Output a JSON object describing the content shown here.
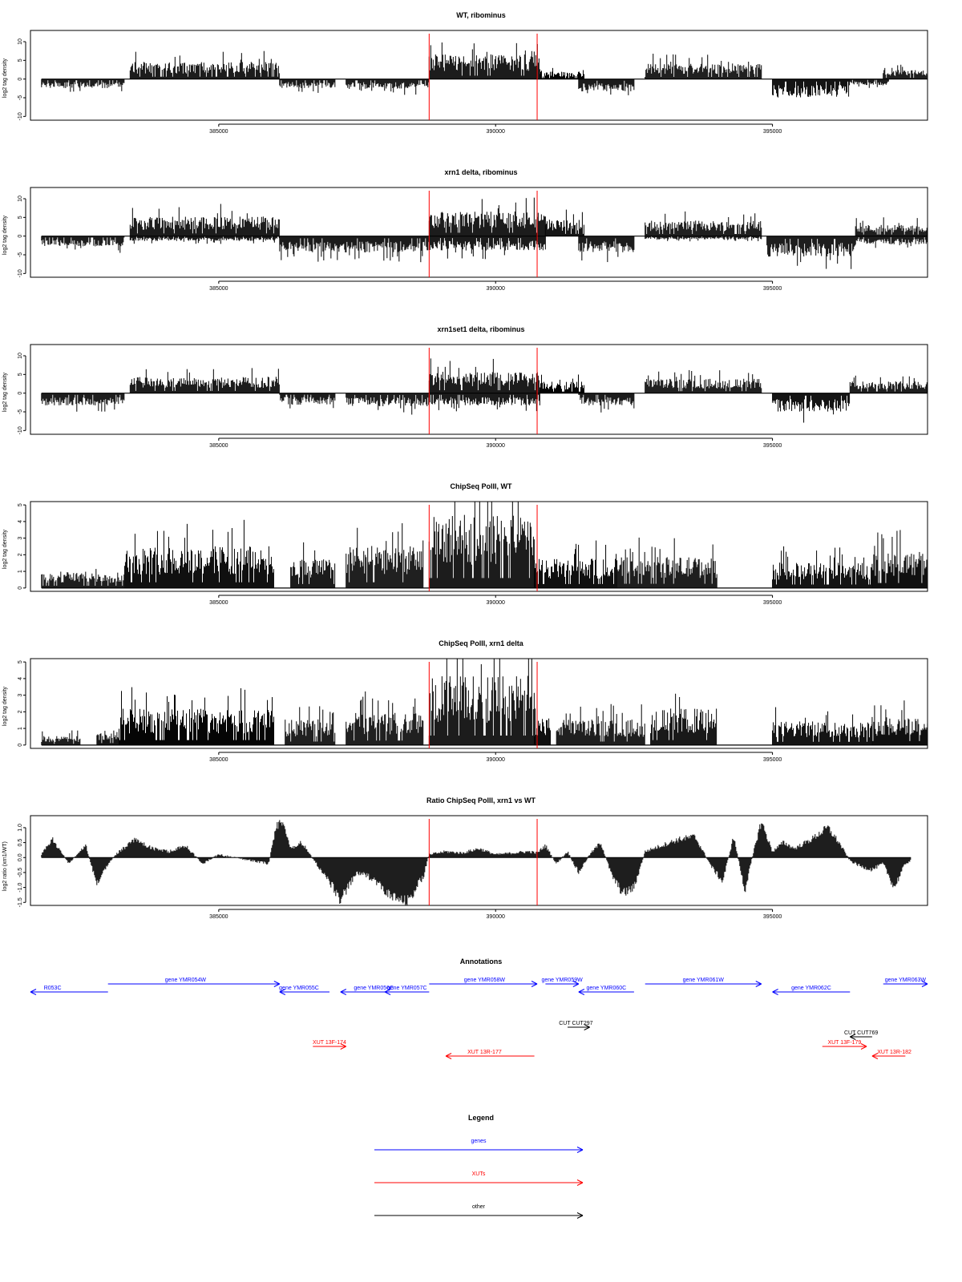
{
  "colors": {
    "bars": "#000000",
    "marker": "#ff0000",
    "gene": "#0000ff",
    "xut": "#ff0000",
    "other": "#000000",
    "frame": "#000000"
  },
  "chart_data": [
    {
      "type": "bar",
      "title": "WT, ribominus",
      "ylabel": "log2 tag density",
      "ylim": [
        -11,
        13
      ],
      "yticks": [
        "10",
        "5",
        "0",
        "-5",
        "-10"
      ],
      "xlim": [
        381600,
        397800
      ],
      "xticks": [
        "385000",
        "390000",
        "395000"
      ],
      "markers": [
        388800,
        390750
      ],
      "segments": [
        {
          "from": 381800,
          "to": 383300,
          "strand": "-",
          "level": 2.2
        },
        {
          "from": 383400,
          "to": 386100,
          "strand": "+",
          "level": 4.2
        },
        {
          "from": 386100,
          "to": 387100,
          "strand": "-",
          "level": 2.2
        },
        {
          "from": 387300,
          "to": 388800,
          "strand": "-",
          "level": 2.4
        },
        {
          "from": 388800,
          "to": 390800,
          "strand": "+",
          "level": 6.0
        },
        {
          "from": 390800,
          "to": 391600,
          "strand": "+",
          "level": 1.8
        },
        {
          "from": 391500,
          "to": 392500,
          "strand": "-",
          "level": 3.0
        },
        {
          "from": 392700,
          "to": 394800,
          "strand": "+",
          "level": 3.8
        },
        {
          "from": 395000,
          "to": 396400,
          "strand": "-",
          "level": 4.5
        },
        {
          "from": 396400,
          "to": 397100,
          "strand": "-",
          "level": 1.6
        },
        {
          "from": 397000,
          "to": 397800,
          "strand": "+",
          "level": 2.2
        }
      ]
    },
    {
      "type": "bar",
      "title": "xrn1 delta, ribominus",
      "ylabel": "log2 tag density",
      "ylim": [
        -11,
        13
      ],
      "yticks": [
        "10",
        "5",
        "0",
        "-5",
        "-10"
      ],
      "xlim": [
        381600,
        397800
      ],
      "xticks": [
        "385000",
        "390000",
        "395000"
      ],
      "markers": [
        388800,
        390750
      ],
      "segments": [
        {
          "from": 381800,
          "to": 383300,
          "strand": "-",
          "level": 2.5
        },
        {
          "from": 383400,
          "to": 386100,
          "strand": "+",
          "level": 4.8
        },
        {
          "from": 383400,
          "to": 386100,
          "strand": "-",
          "level": 1.2
        },
        {
          "from": 386100,
          "to": 388800,
          "strand": "-",
          "level": 4.0
        },
        {
          "from": 388800,
          "to": 390900,
          "strand": "+",
          "level": 6.0
        },
        {
          "from": 388800,
          "to": 390900,
          "strand": "-",
          "level": 3.5
        },
        {
          "from": 390900,
          "to": 391600,
          "strand": "+",
          "level": 4.0
        },
        {
          "from": 391500,
          "to": 392500,
          "strand": "-",
          "level": 4.0
        },
        {
          "from": 392700,
          "to": 394800,
          "strand": "+",
          "level": 3.8
        },
        {
          "from": 392700,
          "to": 394800,
          "strand": "-",
          "level": 0.8
        },
        {
          "from": 394900,
          "to": 396500,
          "strand": "-",
          "level": 5.0
        },
        {
          "from": 396500,
          "to": 397800,
          "strand": "+",
          "level": 2.8
        },
        {
          "from": 396500,
          "to": 397800,
          "strand": "-",
          "level": 2.0
        }
      ]
    },
    {
      "type": "bar",
      "title": "xrn1set1 delta, ribominus",
      "ylabel": "log2 tag density",
      "ylim": [
        -11,
        13
      ],
      "yticks": [
        "10",
        "5",
        "0",
        "-5",
        "-10"
      ],
      "xlim": [
        381600,
        397800
      ],
      "xticks": [
        "385000",
        "390000",
        "395000"
      ],
      "markers": [
        388800,
        390750
      ],
      "segments": [
        {
          "from": 381800,
          "to": 383300,
          "strand": "-",
          "level": 3.0
        },
        {
          "from": 383400,
          "to": 386100,
          "strand": "+",
          "level": 4.0
        },
        {
          "from": 386100,
          "to": 387100,
          "strand": "-",
          "level": 2.8
        },
        {
          "from": 387300,
          "to": 388800,
          "strand": "-",
          "level": 3.2
        },
        {
          "from": 388800,
          "to": 390800,
          "strand": "+",
          "level": 5.2
        },
        {
          "from": 388800,
          "to": 390800,
          "strand": "-",
          "level": 3.0
        },
        {
          "from": 390800,
          "to": 391600,
          "strand": "+",
          "level": 2.8
        },
        {
          "from": 391500,
          "to": 392500,
          "strand": "-",
          "level": 3.0
        },
        {
          "from": 392700,
          "to": 394800,
          "strand": "+",
          "level": 3.5
        },
        {
          "from": 395000,
          "to": 396400,
          "strand": "-",
          "level": 4.5
        },
        {
          "from": 396400,
          "to": 397800,
          "strand": "+",
          "level": 3.0
        }
      ]
    },
    {
      "type": "bar",
      "title": "ChipSeq PolII, WT",
      "ylabel": "log2 tag density",
      "ylim": [
        -0.2,
        5.2
      ],
      "yticks": [
        "5",
        "4",
        "3",
        "2",
        "1",
        "0"
      ],
      "xlim": [
        381600,
        397800
      ],
      "xticks": [
        "385000",
        "390000",
        "395000"
      ],
      "markers": [
        388800,
        390750
      ],
      "segments": [
        {
          "from": 381800,
          "to": 383300,
          "strand": "+",
          "level": 0.9
        },
        {
          "from": 383300,
          "to": 386000,
          "strand": "+",
          "level": 2.3
        },
        {
          "from": 386300,
          "to": 387100,
          "strand": "+",
          "level": 1.6
        },
        {
          "from": 387300,
          "to": 388700,
          "strand": "+",
          "level": 2.3
        },
        {
          "from": 388800,
          "to": 390700,
          "strand": "+",
          "level": 4.0
        },
        {
          "from": 390700,
          "to": 392200,
          "strand": "+",
          "level": 1.6
        },
        {
          "from": 392200,
          "to": 394000,
          "strand": "+",
          "level": 1.7
        },
        {
          "from": 395000,
          "to": 396800,
          "strand": "+",
          "level": 1.4
        },
        {
          "from": 396800,
          "to": 397800,
          "strand": "+",
          "level": 2.0
        }
      ]
    },
    {
      "type": "bar",
      "title": "ChipSeq PolII, xrn1 delta",
      "ylabel": "log2 tag density",
      "ylim": [
        -0.2,
        5.2
      ],
      "yticks": [
        "5",
        "4",
        "3",
        "2",
        "1",
        "0"
      ],
      "xlim": [
        381600,
        397800
      ],
      "xticks": [
        "385000",
        "390000",
        "395000"
      ],
      "markers": [
        388800,
        390750
      ],
      "segments": [
        {
          "from": 381800,
          "to": 382500,
          "strand": "+",
          "level": 0.5
        },
        {
          "from": 382800,
          "to": 383200,
          "strand": "+",
          "level": 0.8
        },
        {
          "from": 383200,
          "to": 386000,
          "strand": "+",
          "level": 2.0
        },
        {
          "from": 386200,
          "to": 387100,
          "strand": "+",
          "level": 1.4
        },
        {
          "from": 387300,
          "to": 388700,
          "strand": "+",
          "level": 1.8
        },
        {
          "from": 388800,
          "to": 390700,
          "strand": "+",
          "level": 3.8
        },
        {
          "from": 390700,
          "to": 391000,
          "strand": "+",
          "level": 1.5
        },
        {
          "from": 391100,
          "to": 392700,
          "strand": "+",
          "level": 1.4
        },
        {
          "from": 392800,
          "to": 394000,
          "strand": "+",
          "level": 2.0
        },
        {
          "from": 395000,
          "to": 396800,
          "strand": "+",
          "level": 1.3
        },
        {
          "from": 396800,
          "to": 397800,
          "strand": "+",
          "level": 1.6
        }
      ]
    },
    {
      "type": "area",
      "title": "Ratio ChipSeq PolII, xrn1 vs WT",
      "ylabel": "log2 ratio (xrn1/WT)",
      "ylim": [
        -1.6,
        1.4
      ],
      "yticks": [
        "1.0",
        "0.5",
        "0.0",
        "-0.5",
        "-1.0",
        "-1.5"
      ],
      "xlim": [
        381600,
        397800
      ],
      "xticks": [
        "385000",
        "390000",
        "395000"
      ],
      "markers": [
        388800,
        390750
      ],
      "x": [
        381800,
        382000,
        382300,
        382600,
        382800,
        383000,
        383200,
        383500,
        383800,
        384100,
        384400,
        384700,
        385000,
        385300,
        385600,
        385900,
        386050,
        386150,
        386300,
        386500,
        386800,
        387000,
        387200,
        387500,
        387800,
        388100,
        388400,
        388700,
        388800,
        389100,
        389400,
        389700,
        390000,
        390300,
        390600,
        390750,
        390900,
        391100,
        391300,
        391500,
        391700,
        391900,
        392100,
        392300,
        392500,
        392700,
        393000,
        393300,
        393600,
        393900,
        394100,
        394300,
        394500,
        394700,
        394800,
        395000,
        395200,
        395400,
        395700,
        396000,
        396200,
        396400,
        396600,
        396800,
        397000,
        397200,
        397400,
        397500
      ],
      "values": [
        0.1,
        0.6,
        -0.2,
        0.4,
        -0.9,
        -0.2,
        0.2,
        0.6,
        0.3,
        0.2,
        0.4,
        -0.2,
        0.1,
        0.0,
        -0.1,
        -0.2,
        1.1,
        1.2,
        0.3,
        0.5,
        -0.3,
        -0.8,
        -1.4,
        -0.5,
        -0.7,
        -1.3,
        -1.5,
        -0.6,
        0.1,
        0.2,
        0.15,
        0.3,
        0.1,
        0.15,
        0.2,
        0.15,
        0.4,
        -0.2,
        0.2,
        -0.5,
        0.1,
        0.5,
        -0.6,
        -1.2,
        -1.0,
        0.2,
        0.4,
        0.6,
        0.7,
        -0.3,
        -0.8,
        0.7,
        -1.1,
        0.5,
        1.2,
        0.2,
        0.5,
        0.3,
        0.6,
        1.0,
        0.5,
        -0.1,
        -0.3,
        -0.4,
        -0.2,
        -1.0,
        -0.2,
        -0.1
      ]
    }
  ],
  "annotations": {
    "title": "Annotations",
    "items": [
      {
        "label": "R053C",
        "type": "gene",
        "strand": "-",
        "from": 381600,
        "to": 383000,
        "label_x": 382000,
        "row": 1
      },
      {
        "label": "gene YMR054W",
        "type": "gene",
        "strand": "+",
        "from": 383000,
        "to": 386100,
        "label_x": 384400,
        "row": 0
      },
      {
        "label": "gene YMR055C",
        "type": "gene",
        "strand": "-",
        "from": 386100,
        "to": 387000,
        "label_x": 386450,
        "row": 1
      },
      {
        "label": "gene YMR056C",
        "type": "gene",
        "strand": "-",
        "from": 387200,
        "to": 388300,
        "label_x": 387800,
        "row": 1
      },
      {
        "label": "gene YMR057C",
        "type": "gene",
        "strand": "-",
        "from": 388000,
        "to": 388800,
        "label_x": 388400,
        "row": 1
      },
      {
        "label": "gene YMR058W",
        "type": "gene",
        "strand": "+",
        "from": 388800,
        "to": 390750,
        "label_x": 389800,
        "row": 0
      },
      {
        "label": "gene YMR059W",
        "type": "gene",
        "strand": "+",
        "from": 390900,
        "to": 391500,
        "label_x": 391200,
        "row": 0
      },
      {
        "label": "gene YMR060C",
        "type": "gene",
        "strand": "-",
        "from": 391500,
        "to": 392500,
        "label_x": 392000,
        "row": 1
      },
      {
        "label": "gene YMR061W",
        "type": "gene",
        "strand": "+",
        "from": 392700,
        "to": 394800,
        "label_x": 393750,
        "row": 0
      },
      {
        "label": "gene YMR062C",
        "type": "gene",
        "strand": "-",
        "from": 395000,
        "to": 396400,
        "label_x": 395700,
        "row": 1
      },
      {
        "label": "gene YMR063W",
        "type": "gene",
        "strand": "+",
        "from": 397000,
        "to": 397800,
        "label_x": 397400,
        "row": 0
      },
      {
        "label": "CUT CUT297",
        "type": "other",
        "strand": "+",
        "from": 391300,
        "to": 391700,
        "label_x": 391450,
        "row": 2
      },
      {
        "label": "CUT CUT769",
        "type": "other",
        "strand": "-",
        "from": 396400,
        "to": 396800,
        "label_x": 396600,
        "row": 3
      },
      {
        "label": "XUT 13F-174",
        "type": "xut",
        "strand": "+",
        "from": 386700,
        "to": 387300,
        "label_x": 387000,
        "row": 4
      },
      {
        "label": "XUT 13R-177",
        "type": "xut",
        "strand": "-",
        "from": 389100,
        "to": 390700,
        "label_x": 389800,
        "row": 5
      },
      {
        "label": "XUT 13F-179",
        "type": "xut",
        "strand": "+",
        "from": 395900,
        "to": 396700,
        "label_x": 396300,
        "row": 4
      },
      {
        "label": "XUT 13R-182",
        "type": "xut",
        "strand": "-",
        "from": 396800,
        "to": 397400,
        "label_x": 397200,
        "row": 5
      }
    ]
  },
  "legend": {
    "title": "Legend",
    "items": [
      {
        "label": "genes",
        "type": "gene"
      },
      {
        "label": "XUTs",
        "type": "xut"
      },
      {
        "label": "other",
        "type": "other"
      }
    ]
  }
}
